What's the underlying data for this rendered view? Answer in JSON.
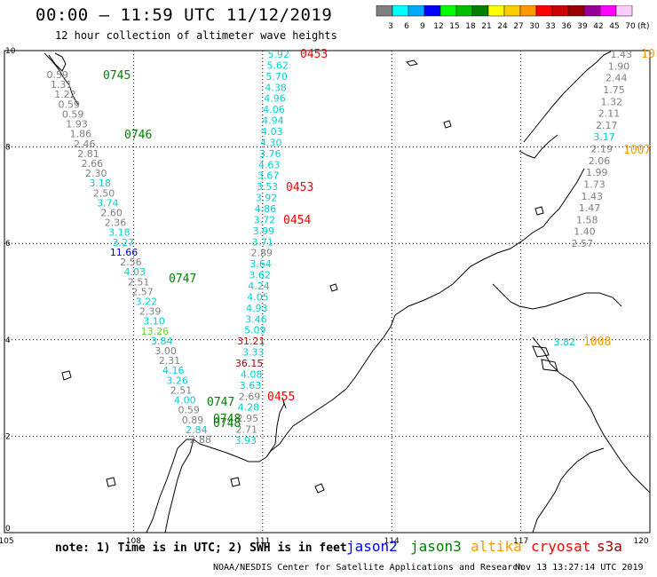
{
  "header": {
    "title": "00:00 – 11:59 UTC 11/12/2019",
    "subtitle": "12 hour collection of altimeter wave heights"
  },
  "colorbar": {
    "unit": "(ft)",
    "stops": [
      {
        "label": "3",
        "color": "#808080"
      },
      {
        "label": "6",
        "color": "#00ffff"
      },
      {
        "label": "9",
        "color": "#00aaff"
      },
      {
        "label": "12",
        "color": "#0000ff"
      },
      {
        "label": "15",
        "color": "#00ff00"
      },
      {
        "label": "18",
        "color": "#00c000"
      },
      {
        "label": "21",
        "color": "#008000"
      },
      {
        "label": "24",
        "color": "#ffff00"
      },
      {
        "label": "27",
        "color": "#ffcc00"
      },
      {
        "label": "30",
        "color": "#ff9900"
      },
      {
        "label": "33",
        "color": "#ff0000"
      },
      {
        "label": "36",
        "color": "#cc0000"
      },
      {
        "label": "39",
        "color": "#990000"
      },
      {
        "label": "42",
        "color": "#990099"
      },
      {
        "label": "45",
        "color": "#ff00ff"
      },
      {
        "label": "70",
        "color": "#ffccff"
      }
    ]
  },
  "axes": {
    "x_ticks": [
      "105",
      "108",
      "111",
      "114",
      "117",
      "120"
    ],
    "y_ticks": [
      "0",
      "2",
      "4",
      "6",
      "8",
      "10"
    ]
  },
  "tracks": [
    {
      "name": "track-a",
      "points": [
        {
          "v": "0.59",
          "c": "#808080"
        },
        {
          "v": "1.31",
          "c": "#808080"
        },
        {
          "v": "1.22",
          "c": "#808080"
        },
        {
          "v": "0.59",
          "c": "#808080"
        },
        {
          "v": "0.59",
          "c": "#808080"
        },
        {
          "v": "1.93",
          "c": "#808080"
        },
        {
          "v": "1.86",
          "c": "#808080"
        },
        {
          "v": "2.46",
          "c": "#808080"
        },
        {
          "v": "2.81",
          "c": "#808080"
        },
        {
          "v": "2.66",
          "c": "#808080"
        },
        {
          "v": "2.30",
          "c": "#808080"
        },
        {
          "v": "3.18",
          "c": "#00d0d0"
        },
        {
          "v": "2.50",
          "c": "#808080"
        },
        {
          "v": "3.74",
          "c": "#00d0d0"
        },
        {
          "v": "2.60",
          "c": "#808080"
        },
        {
          "v": "2.36",
          "c": "#808080"
        },
        {
          "v": "3.18",
          "c": "#00d0d0"
        },
        {
          "v": "3.27",
          "c": "#00d0d0"
        },
        {
          "v": "11.66",
          "c": "#0000cc"
        },
        {
          "v": "2.56",
          "c": "#808080"
        },
        {
          "v": "4.03",
          "c": "#00d0d0"
        },
        {
          "v": "2.51",
          "c": "#808080"
        },
        {
          "v": "2.57",
          "c": "#808080"
        },
        {
          "v": "3.22",
          "c": "#00d0d0"
        },
        {
          "v": "2.39",
          "c": "#808080"
        },
        {
          "v": "3.10",
          "c": "#00d0d0"
        },
        {
          "v": "13.26",
          "c": "#66cc33"
        },
        {
          "v": "3.84",
          "c": "#00d0d0"
        },
        {
          "v": "3.00",
          "c": "#808080"
        },
        {
          "v": "2.31",
          "c": "#808080"
        },
        {
          "v": "4.16",
          "c": "#00d0d0"
        },
        {
          "v": "3.26",
          "c": "#00d0d0"
        },
        {
          "v": "2.51",
          "c": "#808080"
        },
        {
          "v": "4.00",
          "c": "#00d0d0"
        },
        {
          "v": "0.59",
          "c": "#808080"
        },
        {
          "v": "0.89",
          "c": "#808080"
        },
        {
          "v": "2.84",
          "c": "#00d0d0"
        },
        {
          "v": "2.88",
          "c": "#808080"
        }
      ]
    },
    {
      "name": "track-b",
      "points": [
        {
          "v": "5.92",
          "c": "#00d0d0"
        },
        {
          "v": "5.62",
          "c": "#00d0d0"
        },
        {
          "v": "5.70",
          "c": "#00d0d0"
        },
        {
          "v": "4.38",
          "c": "#00d0d0"
        },
        {
          "v": "4.96",
          "c": "#00d0d0"
        },
        {
          "v": "4.06",
          "c": "#00d0d0"
        },
        {
          "v": "4.94",
          "c": "#00d0d0"
        },
        {
          "v": "4.03",
          "c": "#00d0d0"
        },
        {
          "v": "4.30",
          "c": "#00d0d0"
        },
        {
          "v": "3.76",
          "c": "#00d0d0"
        },
        {
          "v": "4.63",
          "c": "#00d0d0"
        },
        {
          "v": "3.67",
          "c": "#00d0d0"
        },
        {
          "v": "3.53",
          "c": "#00d0d0"
        },
        {
          "v": "3.92",
          "c": "#00d0d0"
        },
        {
          "v": "4.86",
          "c": "#00d0d0"
        },
        {
          "v": "3.72",
          "c": "#00d0d0"
        },
        {
          "v": "3.99",
          "c": "#00d0d0"
        },
        {
          "v": "3.71",
          "c": "#00d0d0"
        },
        {
          "v": "2.89",
          "c": "#808080"
        },
        {
          "v": "3.64",
          "c": "#00d0d0"
        },
        {
          "v": "3.62",
          "c": "#00d0d0"
        },
        {
          "v": "4.24",
          "c": "#00d0d0"
        },
        {
          "v": "4.05",
          "c": "#00d0d0"
        },
        {
          "v": "4.93",
          "c": "#00d0d0"
        },
        {
          "v": "3.46",
          "c": "#00d0d0"
        },
        {
          "v": "5.09",
          "c": "#00d0d0"
        },
        {
          "v": "31.21",
          "c": "#cc0000"
        },
        {
          "v": "3.33",
          "c": "#00d0d0"
        },
        {
          "v": "36.15",
          "c": "#990000"
        },
        {
          "v": "4.08",
          "c": "#00d0d0"
        },
        {
          "v": "3.63",
          "c": "#00d0d0"
        },
        {
          "v": "2.69",
          "c": "#808080"
        },
        {
          "v": "4.28",
          "c": "#00d0d0"
        },
        {
          "v": "2.95",
          "c": "#808080"
        },
        {
          "v": "2.71",
          "c": "#808080"
        },
        {
          "v": "3.93",
          "c": "#00d0d0"
        }
      ]
    },
    {
      "name": "track-c",
      "points": [
        {
          "v": "1.43",
          "c": "#808080"
        },
        {
          "v": "1.90",
          "c": "#808080"
        },
        {
          "v": "2.44",
          "c": "#808080"
        },
        {
          "v": "1.75",
          "c": "#808080"
        },
        {
          "v": "1.32",
          "c": "#808080"
        },
        {
          "v": "2.11",
          "c": "#808080"
        },
        {
          "v": "2.17",
          "c": "#808080"
        },
        {
          "v": "3.17",
          "c": "#00d0d0"
        },
        {
          "v": "2.19",
          "c": "#808080"
        },
        {
          "v": "2.06",
          "c": "#808080"
        },
        {
          "v": "1.99",
          "c": "#808080"
        },
        {
          "v": "1.73",
          "c": "#808080"
        },
        {
          "v": "1.43",
          "c": "#808080"
        },
        {
          "v": "1.47",
          "c": "#808080"
        },
        {
          "v": "1.58",
          "c": "#808080"
        },
        {
          "v": "1.40",
          "c": "#808080"
        },
        {
          "v": "2.57",
          "c": "#808080"
        }
      ]
    }
  ],
  "extra_values": [
    {
      "v": "3.82",
      "c": "#00d0d0"
    }
  ],
  "time_labels": [
    {
      "text": "0745",
      "c": "#008000"
    },
    {
      "text": "0746",
      "c": "#008000"
    },
    {
      "text": "0747",
      "c": "#008000"
    },
    {
      "text": "0747",
      "c": "#008000"
    },
    {
      "text": "0748",
      "c": "#008000"
    },
    {
      "text": "0748",
      "c": "#008000"
    },
    {
      "text": "0453",
      "c": "#ff0000"
    },
    {
      "text": "0453",
      "c": "#ff0000"
    },
    {
      "text": "0454",
      "c": "#ff0000"
    },
    {
      "text": "0455",
      "c": "#ff0000"
    },
    {
      "text": "10",
      "c": "#ff9900"
    },
    {
      "text": "1007",
      "c": "#ff9900"
    },
    {
      "text": "1008",
      "c": "#ff9900"
    }
  ],
  "note": "note: 1) Time is in UTC; 2) SWH is in feet",
  "satellites": [
    {
      "name": "jason2",
      "color": "#0000ff"
    },
    {
      "name": "jason3",
      "color": "#008000"
    },
    {
      "name": "altika",
      "color": "#ff9900"
    },
    {
      "name": "cryosat",
      "color": "#ff0000"
    },
    {
      "name": "s3a",
      "color": "#990000"
    }
  ],
  "footer": {
    "credit": "NOAA/NESDIS Center for Satellite Applications and Research",
    "timestamp": "Nov 13 13:27:14 UTC 2019"
  }
}
